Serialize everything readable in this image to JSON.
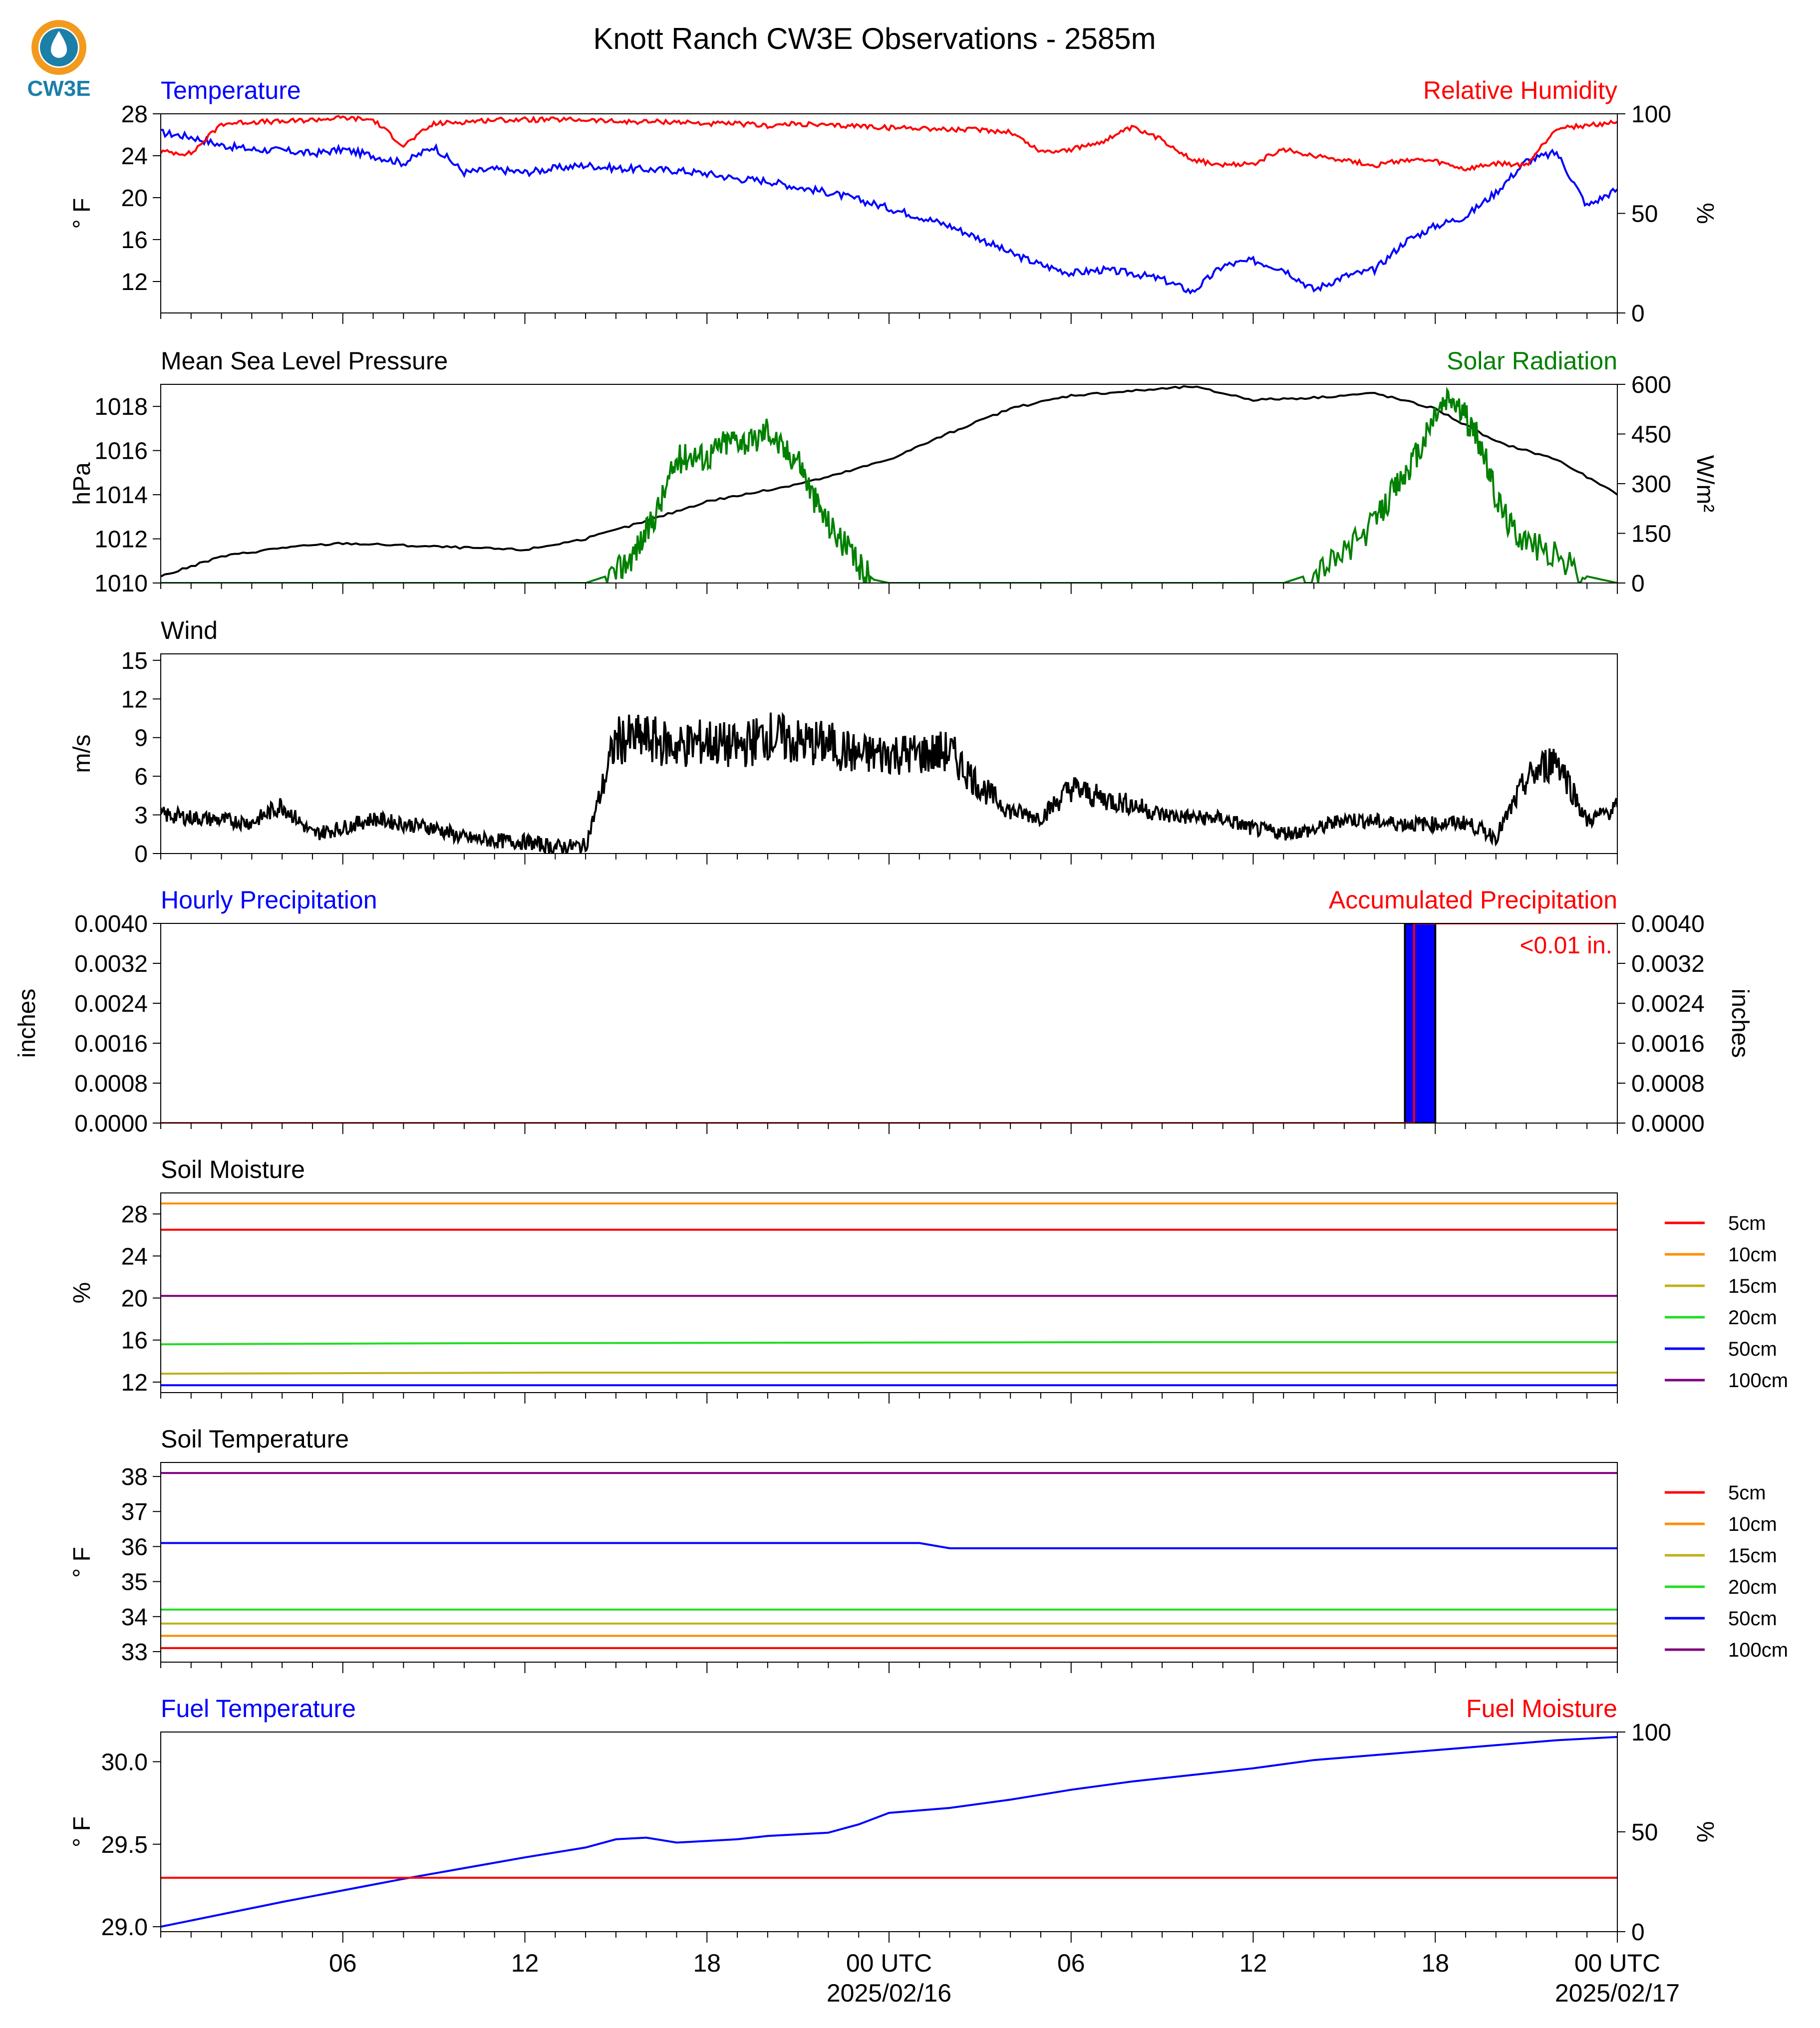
{
  "title": "Knott Ranch CW3E Observations - 2585m",
  "logo": {
    "text": "CW3E",
    "colors": {
      "ring": "#f39a1e",
      "drop": "#1b7fa8",
      "text": "#1b7fa8"
    }
  },
  "colors": {
    "blue": "#0000ff",
    "red": "#ff0000",
    "green": "#008000",
    "black": "#000000",
    "orange": "#ff8c00",
    "olive": "#bfb01a",
    "lime": "#22dd22",
    "purple": "#800080"
  },
  "x_axis": {
    "ticks": [
      "06",
      "12",
      "18",
      "00 UTC",
      "06",
      "12",
      "18",
      "00 UTC"
    ],
    "dates": [
      "2025/02/16",
      "2025/02/17"
    ]
  },
  "chart_data": [
    {
      "type": "line",
      "panel": "temperature_rh",
      "left_title": "Temperature",
      "right_title": "Relative Humidity",
      "ylabel": "° F",
      "y2label": "%",
      "yticks": [
        "28",
        "24",
        "20",
        "16",
        "12"
      ],
      "y2ticks": [
        "100",
        "50",
        "0"
      ],
      "ylim": [
        9,
        28
      ],
      "y2lim": [
        0,
        100
      ],
      "series": [
        {
          "name": "Temperature",
          "axis": "left",
          "color": "#0000ff",
          "x": [
            0,
            1,
            2,
            3,
            4,
            5,
            6,
            7,
            8,
            9,
            10,
            11,
            12,
            13,
            14,
            15,
            16,
            17,
            18,
            19,
            20,
            21,
            22,
            23,
            24,
            25,
            26,
            27,
            28,
            29,
            30,
            31,
            32,
            33,
            34,
            35,
            36,
            37,
            38,
            39,
            40,
            41,
            42,
            43,
            44,
            45,
            46,
            47,
            48
          ],
          "values": [
            26.2,
            25.8,
            25.0,
            24.6,
            24.5,
            24.2,
            24.6,
            24.0,
            23.3,
            24.9,
            22.4,
            22.7,
            22.4,
            22.8,
            23.1,
            22.8,
            22.7,
            22.6,
            22.3,
            21.8,
            21.6,
            21.0,
            20.5,
            19.8,
            19.0,
            18.2,
            17.3,
            16.1,
            14.7,
            13.6,
            12.8,
            13.1,
            12.8,
            12.2,
            11.0,
            13.5,
            14.0,
            13.2,
            11.2,
            12.5,
            13.1,
            15.8,
            17.3,
            18.2,
            20.5,
            23.5,
            24.3,
            19.2,
            20.8
          ]
        },
        {
          "name": "Relative Humidity",
          "axis": "right",
          "color": "#ff0000",
          "x": [
            0,
            1,
            2,
            3,
            4,
            5,
            6,
            7,
            8,
            9,
            10,
            11,
            12,
            13,
            14,
            15,
            16,
            17,
            18,
            19,
            20,
            21,
            22,
            23,
            24,
            25,
            26,
            27,
            28,
            29,
            30,
            31,
            32,
            33,
            34,
            35,
            36,
            37,
            38,
            39,
            40,
            41,
            42,
            43,
            44,
            45,
            46,
            47,
            48
          ],
          "values": [
            81,
            80,
            95,
            96,
            96,
            97,
            98,
            97,
            84,
            95,
            96,
            97,
            97,
            97,
            97,
            96,
            96,
            96,
            95,
            95,
            94,
            95,
            94,
            94,
            93,
            93,
            92,
            92,
            91,
            81,
            82,
            86,
            93,
            87,
            77,
            74,
            75,
            82,
            79,
            77,
            74,
            77,
            76,
            72,
            75,
            74,
            93,
            94,
            96
          ]
        }
      ]
    },
    {
      "type": "line",
      "panel": "pressure_solar",
      "left_title": "Mean Sea Level Pressure",
      "right_title": "Solar Radiation",
      "ylabel": "hPa",
      "y2label": "W/m²",
      "yticks": [
        "1018",
        "1016",
        "1014",
        "1012",
        "1010"
      ],
      "y2ticks": [
        "600",
        "450",
        "300",
        "150",
        "0"
      ],
      "ylim": [
        1010,
        1019
      ],
      "y2lim": [
        0,
        600
      ],
      "series": [
        {
          "name": "Mean Sea Level Pressure",
          "axis": "left",
          "color": "#000000",
          "x": [
            0,
            2,
            4,
            6,
            8,
            10,
            12,
            14,
            16,
            18,
            20,
            22,
            24,
            26,
            28,
            30,
            32,
            34,
            36,
            38,
            40,
            42,
            44,
            46,
            48
          ],
          "values": [
            1010.3,
            1011.2,
            1011.6,
            1011.8,
            1011.7,
            1011.6,
            1011.5,
            1012.0,
            1012.8,
            1013.7,
            1014.2,
            1014.8,
            1015.6,
            1016.8,
            1017.9,
            1018.5,
            1018.7,
            1018.9,
            1018.3,
            1018.4,
            1018.6,
            1017.9,
            1016.4,
            1015.6,
            1014.0
          ]
        },
        {
          "name": "Solar Radiation",
          "axis": "right",
          "color": "#008000",
          "x": [
            0,
            14,
            15,
            15.5,
            16,
            16.5,
            17,
            17.5,
            18,
            18.5,
            19,
            19.5,
            20,
            20.5,
            21,
            21.5,
            22,
            22.5,
            23,
            23.5,
            24,
            37,
            38,
            39,
            40,
            40.5,
            41,
            41.5,
            42,
            42.5,
            43,
            43.5,
            44,
            44.5,
            45,
            46,
            47,
            48
          ],
          "values": [
            0,
            0,
            30,
            80,
            150,
            250,
            370,
            390,
            380,
            420,
            440,
            420,
            470,
            400,
            380,
            260,
            180,
            120,
            50,
            10,
            0,
            0,
            30,
            90,
            180,
            260,
            330,
            400,
            510,
            560,
            500,
            420,
            260,
            170,
            130,
            80,
            20,
            0
          ]
        }
      ]
    },
    {
      "type": "line",
      "panel": "wind",
      "left_title": "Wind",
      "ylabel": "m/s",
      "yticks": [
        "15",
        "12",
        "9",
        "6",
        "3",
        "0"
      ],
      "ylim": [
        0,
        15.5
      ],
      "series": [
        {
          "name": "Wind",
          "axis": "left",
          "color": "#000000",
          "x": [
            0,
            1,
            2,
            3,
            4,
            5,
            6,
            7,
            8,
            9,
            10,
            11,
            12,
            13,
            14,
            15,
            16,
            17,
            18,
            19,
            20,
            21,
            22,
            23,
            24,
            25,
            26,
            27,
            28,
            29,
            30,
            31,
            32,
            33,
            34,
            35,
            36,
            37,
            38,
            39,
            40,
            41,
            42,
            43,
            44,
            45,
            46,
            47,
            48
          ],
          "values": [
            3.0,
            2.8,
            2.6,
            2.4,
            3.8,
            1.5,
            2.0,
            2.7,
            2.3,
            2.0,
            1.2,
            1.0,
            0.9,
            0.5,
            0.6,
            8.8,
            8.9,
            8.3,
            8.7,
            8.2,
            9.2,
            8.6,
            8.5,
            7.6,
            7.8,
            7.7,
            7.9,
            5.2,
            3.3,
            2.8,
            5.1,
            4.3,
            3.8,
            3.0,
            2.8,
            2.7,
            1.9,
            1.6,
            1.8,
            2.7,
            2.5,
            2.3,
            2.3,
            2.4,
            1.3,
            5.7,
            7.5,
            2.5,
            3.6
          ]
        }
      ]
    },
    {
      "type": "bar",
      "panel": "precipitation",
      "left_title": "Hourly Precipitation",
      "right_title": "Accumulated Precipitation",
      "ylabel": "inches",
      "y2label": "inches",
      "yticks": [
        "0.0040",
        "0.0032",
        "0.0024",
        "0.0016",
        "0.0008",
        "0.0000"
      ],
      "y2ticks": [
        "0.0040",
        "0.0032",
        "0.0024",
        "0.0016",
        "0.0008",
        "0.0000"
      ],
      "ylim": [
        0,
        0.004
      ],
      "annotation": "<0.01 in.",
      "bars": [
        {
          "x": 41,
          "value": 0.004
        }
      ],
      "series": [
        {
          "name": "Accumulated Precipitation",
          "axis": "right",
          "color": "#ff0000",
          "x": [
            0,
            41.3,
            41.3,
            48
          ],
          "values": [
            0,
            0,
            0.004,
            0.004
          ]
        }
      ]
    },
    {
      "type": "line",
      "panel": "soil_moisture",
      "left_title": "Soil Moisture",
      "ylabel": "%",
      "yticks": [
        "28",
        "24",
        "20",
        "16",
        "12"
      ],
      "ylim": [
        11,
        30
      ],
      "legend": [
        "5cm",
        "10cm",
        "15cm",
        "20cm",
        "50cm",
        "100cm"
      ],
      "series": [
        {
          "name": "5cm",
          "color": "#ff0000",
          "x": [
            0,
            48
          ],
          "values": [
            26.5,
            26.5
          ]
        },
        {
          "name": "10cm",
          "color": "#ff8c00",
          "x": [
            0,
            48
          ],
          "values": [
            29.0,
            29.0
          ]
        },
        {
          "name": "15cm",
          "color": "#bfb01a",
          "x": [
            0,
            13,
            48
          ],
          "values": [
            12.8,
            12.9,
            12.9
          ]
        },
        {
          "name": "20cm",
          "color": "#22dd22",
          "x": [
            0,
            10,
            33,
            48
          ],
          "values": [
            15.6,
            15.7,
            15.8,
            15.8
          ]
        },
        {
          "name": "50cm",
          "color": "#0000ff",
          "x": [
            0,
            48
          ],
          "values": [
            11.7,
            11.7
          ]
        },
        {
          "name": "100cm",
          "color": "#800080",
          "x": [
            0,
            48
          ],
          "values": [
            20.2,
            20.2
          ]
        }
      ]
    },
    {
      "type": "line",
      "panel": "soil_temperature",
      "left_title": "Soil Temperature",
      "ylabel": "° F",
      "yticks": [
        "38",
        "37",
        "36",
        "35",
        "34",
        "33"
      ],
      "ylim": [
        32.7,
        38.4
      ],
      "legend": [
        "5cm",
        "10cm",
        "15cm",
        "20cm",
        "50cm",
        "100cm"
      ],
      "series": [
        {
          "name": "5cm",
          "color": "#ff0000",
          "x": [
            0,
            48
          ],
          "values": [
            33.1,
            33.1
          ]
        },
        {
          "name": "10cm",
          "color": "#ff8c00",
          "x": [
            0,
            48
          ],
          "values": [
            33.45,
            33.45
          ]
        },
        {
          "name": "15cm",
          "color": "#bfb01a",
          "x": [
            0,
            48
          ],
          "values": [
            33.8,
            33.8
          ]
        },
        {
          "name": "20cm",
          "color": "#22dd22",
          "x": [
            0,
            48
          ],
          "values": [
            34.2,
            34.2
          ]
        },
        {
          "name": "50cm",
          "color": "#0000ff",
          "x": [
            0,
            25,
            26,
            48
          ],
          "values": [
            36.1,
            36.1,
            35.95,
            35.95
          ]
        },
        {
          "name": "100cm",
          "color": "#800080",
          "x": [
            0,
            48
          ],
          "values": [
            38.1,
            38.1
          ]
        }
      ]
    },
    {
      "type": "line",
      "panel": "fuel",
      "left_title": "Fuel Temperature",
      "right_title": "Fuel Moisture",
      "ylabel": "° F",
      "y2label": "%",
      "yticks": [
        "30.0",
        "29.5",
        "29.0"
      ],
      "y2ticks": [
        "100",
        "50",
        "0"
      ],
      "ylim": [
        28.97,
        30.18
      ],
      "y2lim": [
        0,
        100
      ],
      "series": [
        {
          "name": "Fuel Temperature",
          "axis": "left",
          "color": "#0000ff",
          "x": [
            0,
            4,
            8,
            12,
            14,
            15,
            16,
            17,
            18,
            19,
            20,
            21,
            22,
            23,
            24,
            26,
            28,
            30,
            32,
            34,
            36,
            38,
            40,
            42,
            44,
            46,
            48
          ],
          "values": [
            29.0,
            29.15,
            29.29,
            29.42,
            29.48,
            29.53,
            29.54,
            29.51,
            29.52,
            29.53,
            29.55,
            29.56,
            29.57,
            29.62,
            29.69,
            29.72,
            29.77,
            29.83,
            29.88,
            29.92,
            29.96,
            30.01,
            30.04,
            30.07,
            30.1,
            30.13,
            30.15
          ]
        },
        {
          "name": "Fuel Moisture",
          "axis": "right",
          "color": "#ff0000",
          "x": [
            0,
            48
          ],
          "values": [
            27,
            27
          ]
        }
      ]
    }
  ]
}
